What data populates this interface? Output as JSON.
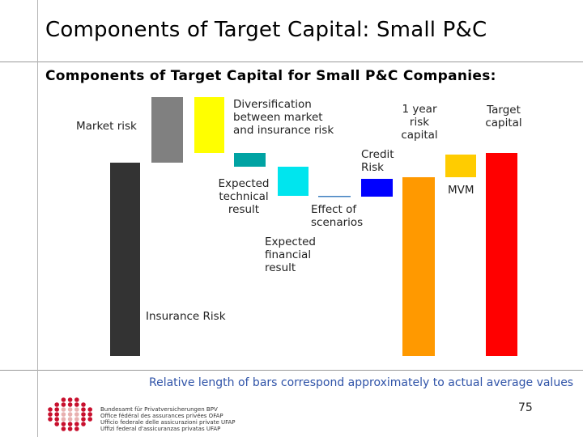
{
  "header": {
    "title": "Components of Target Capital: Small P&C"
  },
  "chart_data": {
    "type": "bar",
    "title": "Components of Target Capital for Small P&C Companies:",
    "note": "Relative length of bars correspond approximately to actual average values",
    "labels": {
      "insurance_risk": "Insurance Risk",
      "market_risk": "Market risk",
      "diversification": "Diversification between market and insurance risk",
      "expected_technical_result": "Expected technical result",
      "expected_financial_result": "Expected financial result",
      "effect_of_scenarios": "Effect of scenarios",
      "credit_risk": "Credit Risk",
      "one_year_risk_capital": "1 year risk capital",
      "mvm": "MVM",
      "target_capital": "Target capital"
    },
    "bars": [
      {
        "id": "insurance_risk",
        "start": 0,
        "end": 239,
        "color": "#333333"
      },
      {
        "id": "market_risk",
        "start": 239,
        "end": 320,
        "color": "#808080"
      },
      {
        "id": "diversification",
        "start": 320,
        "end": 251,
        "color": "#ffff00"
      },
      {
        "id": "expected_technical_result",
        "start": 251,
        "end": 234,
        "color": "#00a3a3"
      },
      {
        "id": "expected_financial_result",
        "start": 234,
        "end": 198,
        "color": "#00e5ee"
      },
      {
        "id": "effect_of_scenarios",
        "start": 198,
        "end": 197,
        "color": "#4080c0"
      },
      {
        "id": "credit_risk",
        "start": 197,
        "end": 219,
        "color": "#0000ff"
      },
      {
        "id": "one_year_risk_capital",
        "start": 0,
        "end": 221,
        "color": "#ff9900"
      },
      {
        "id": "mvm",
        "start": 221,
        "end": 249,
        "color": "#ffcc00"
      },
      {
        "id": "target_capital",
        "start": 0,
        "end": 251,
        "color": "#ff0000"
      }
    ]
  },
  "footer": {
    "page_number": "75",
    "org_lines": [
      "Bundesamt für Privatversicherungen BPV",
      "Office fédéral des assurances privées OFAP",
      "Ufficio federale delle assicurazioni private UFAP",
      "Uffizi federal d'assicuranzas privatas UFAP"
    ]
  }
}
